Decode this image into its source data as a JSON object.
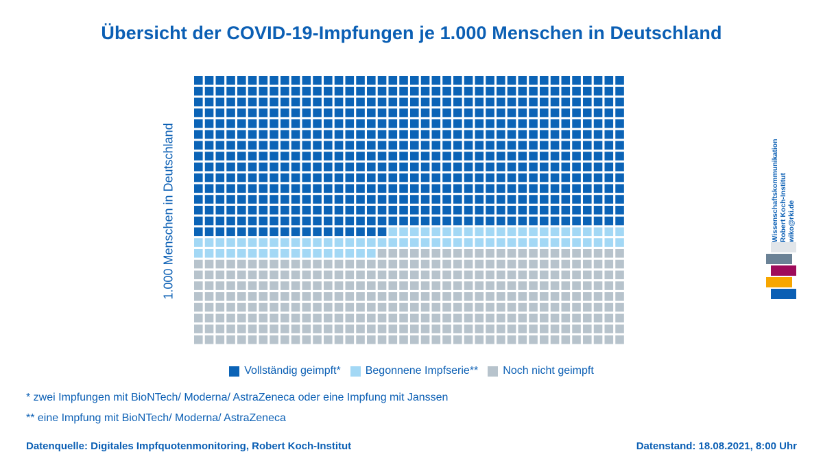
{
  "chart_data": {
    "type": "waffle",
    "title": "Übersicht der COVID-19-Impfungen je 1.000 Menschen in Deutschland",
    "ylabel": "1.000 Menschen in Deutschland",
    "total": 1000,
    "grid": {
      "rows": 25,
      "columns": 40,
      "fill_order": "row-major from top-left"
    },
    "series": [
      {
        "name": "Vollständig geimpft*",
        "value": 578,
        "color": "#0b63b6"
      },
      {
        "name": "Begonnene Impfserie**",
        "value": 79,
        "color": "#a3d8f5"
      },
      {
        "name": "Noch nicht geimpft",
        "value": 343,
        "color": "#b7c3cc"
      }
    ]
  },
  "footnotes": [
    "* zwei Impfungen mit BioNTech/ Moderna/ AstraZeneca oder eine Impfung mit Janssen",
    "** eine Impfung mit BioNTech/ Moderna/ AstraZeneca"
  ],
  "source": "Datenquelle: Digitales Impfquotenmonitoring, Robert Koch-Institut",
  "date": "Datenstand: 18.08.2021, 8:00 Uhr",
  "logo": {
    "lines": [
      "Wissenschaftskommunikation",
      "Robert Koch-Institut",
      "wiko@rki.de"
    ],
    "bar_colors": [
      "#e1e5e9",
      "#6b8296",
      "#9e0b5b",
      "#f7a600",
      "#0b5fb4"
    ]
  }
}
